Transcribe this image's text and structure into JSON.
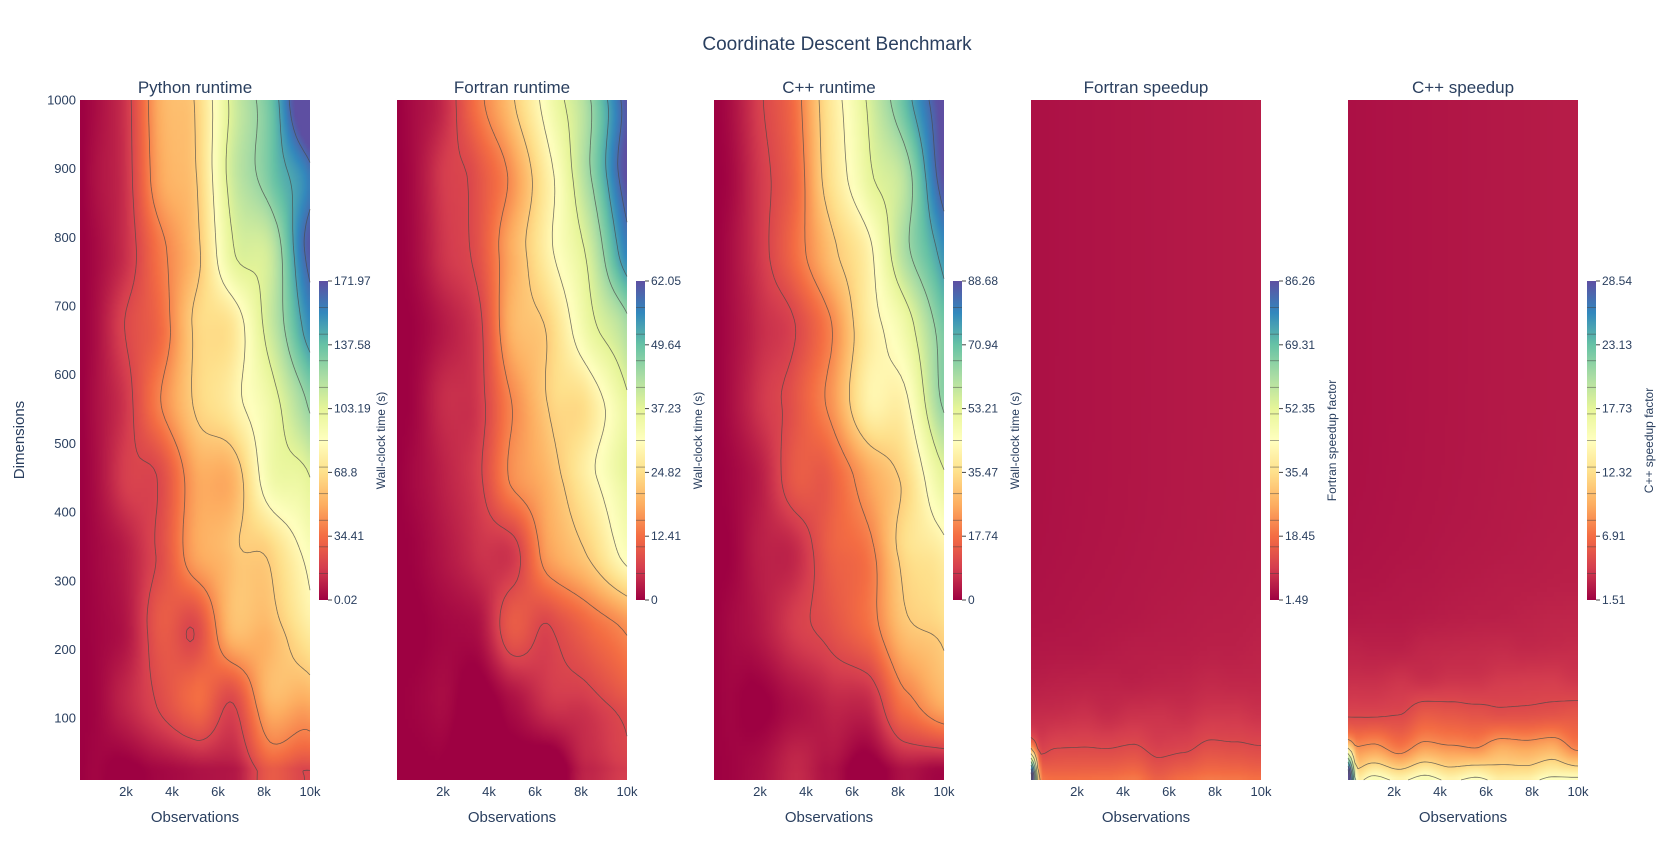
{
  "title": "Coordinate Descent Benchmark",
  "chart_data": {
    "type": "heatmap",
    "style": "filled contour with contour lines, Spectral colorscale (low=red, high=blue)",
    "xlabel": "Observations",
    "ylabel": "Dimensions",
    "x_ticks": [
      "2k",
      "4k",
      "6k",
      "8k",
      "10k"
    ],
    "x_tick_values": [
      2000,
      4000,
      6000,
      8000,
      10000
    ],
    "xlim": [
      0,
      10000
    ],
    "y_ticks": [
      "100",
      "200",
      "300",
      "400",
      "500",
      "600",
      "700",
      "800",
      "900",
      "1000"
    ],
    "y_tick_values": [
      100,
      200,
      300,
      400,
      500,
      600,
      700,
      800,
      900,
      1000
    ],
    "ylim": [
      10,
      1000
    ],
    "colorscale": [
      "#9e0142",
      "#d53e4f",
      "#f46d43",
      "#fdae61",
      "#fee08b",
      "#ffffbf",
      "#e6f598",
      "#abdda4",
      "#66c2a5",
      "#3288bd",
      "#5e4fa2"
    ],
    "panels": [
      {
        "subtitle": "Python runtime",
        "colorbar_title": "Wall-clock time (s)",
        "colorbar_ticks": [
          "0.02",
          "34.41",
          "68.8",
          "103.19",
          "137.58",
          "171.97"
        ],
        "zmin": 0.02,
        "zmax": 171.97,
        "pattern": "runtime",
        "exponent_x": 1.35,
        "exponent_y": 0.55
      },
      {
        "subtitle": "Fortran runtime",
        "colorbar_title": "Wall-clock time (s)",
        "colorbar_ticks": [
          "0",
          "12.41",
          "24.82",
          "37.23",
          "49.64",
          "62.05"
        ],
        "zmin": 0,
        "zmax": 62.05,
        "pattern": "runtime",
        "exponent_x": 1.6,
        "exponent_y": 0.8
      },
      {
        "subtitle": "C++ runtime",
        "colorbar_title": "Wall-clock time (s)",
        "colorbar_ticks": [
          "0",
          "17.74",
          "35.47",
          "53.21",
          "70.94",
          "88.68"
        ],
        "zmin": 0,
        "zmax": 88.68,
        "pattern": "runtime",
        "exponent_x": 1.5,
        "exponent_y": 0.7
      },
      {
        "subtitle": "Fortran speedup",
        "colorbar_title": "Fortran speedup factor",
        "colorbar_ticks": [
          "1.49",
          "18.45",
          "35.4",
          "52.35",
          "69.31",
          "86.26"
        ],
        "zmin": 1.49,
        "zmax": 86.26,
        "pattern": "speedup",
        "spike_scale": 0.85,
        "band_scale": 0.16
      },
      {
        "subtitle": "C++ speedup",
        "colorbar_title": "C++ speedup factor",
        "colorbar_ticks": [
          "1.51",
          "6.91",
          "12.32",
          "17.73",
          "23.13",
          "28.54"
        ],
        "zmin": 1.51,
        "zmax": 28.54,
        "pattern": "speedup",
        "spike_scale": 0.75,
        "band_scale": 0.42
      }
    ]
  }
}
